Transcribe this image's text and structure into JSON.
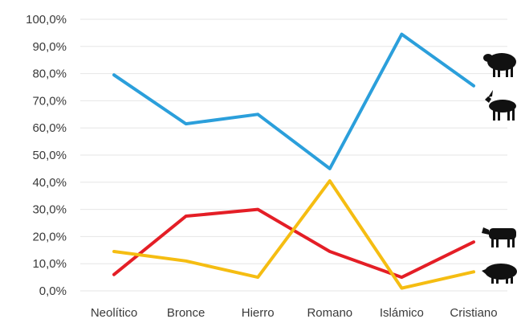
{
  "chart_data": {
    "type": "line",
    "categories": [
      "Neolítico",
      "Bronce",
      "Hierro",
      "Romano",
      "Islámico",
      "Cristiano"
    ],
    "y_tick_labels": [
      "0,0%",
      "10,0%",
      "20,0%",
      "30,0%",
      "40,0%",
      "50,0%",
      "60,0%",
      "70,0%",
      "80,0%",
      "90,0%",
      "100,0%"
    ],
    "ylim": [
      0,
      100
    ],
    "grid": true,
    "legend": "icons at right end of each line",
    "series": [
      {
        "color": "#2b9fdb",
        "icon": "sheep-goat-icon",
        "values": [
          79.5,
          61.5,
          65.0,
          45.0,
          94.5,
          75.5
        ]
      },
      {
        "color": "#e41e26",
        "icon": "cattle-icon",
        "values": [
          6.0,
          27.5,
          30.0,
          14.5,
          5.0,
          18.0
        ]
      },
      {
        "color": "#f5bd12",
        "icon": "pig-icon",
        "values": [
          14.5,
          11.0,
          5.0,
          40.5,
          1.0,
          7.0
        ]
      }
    ]
  }
}
